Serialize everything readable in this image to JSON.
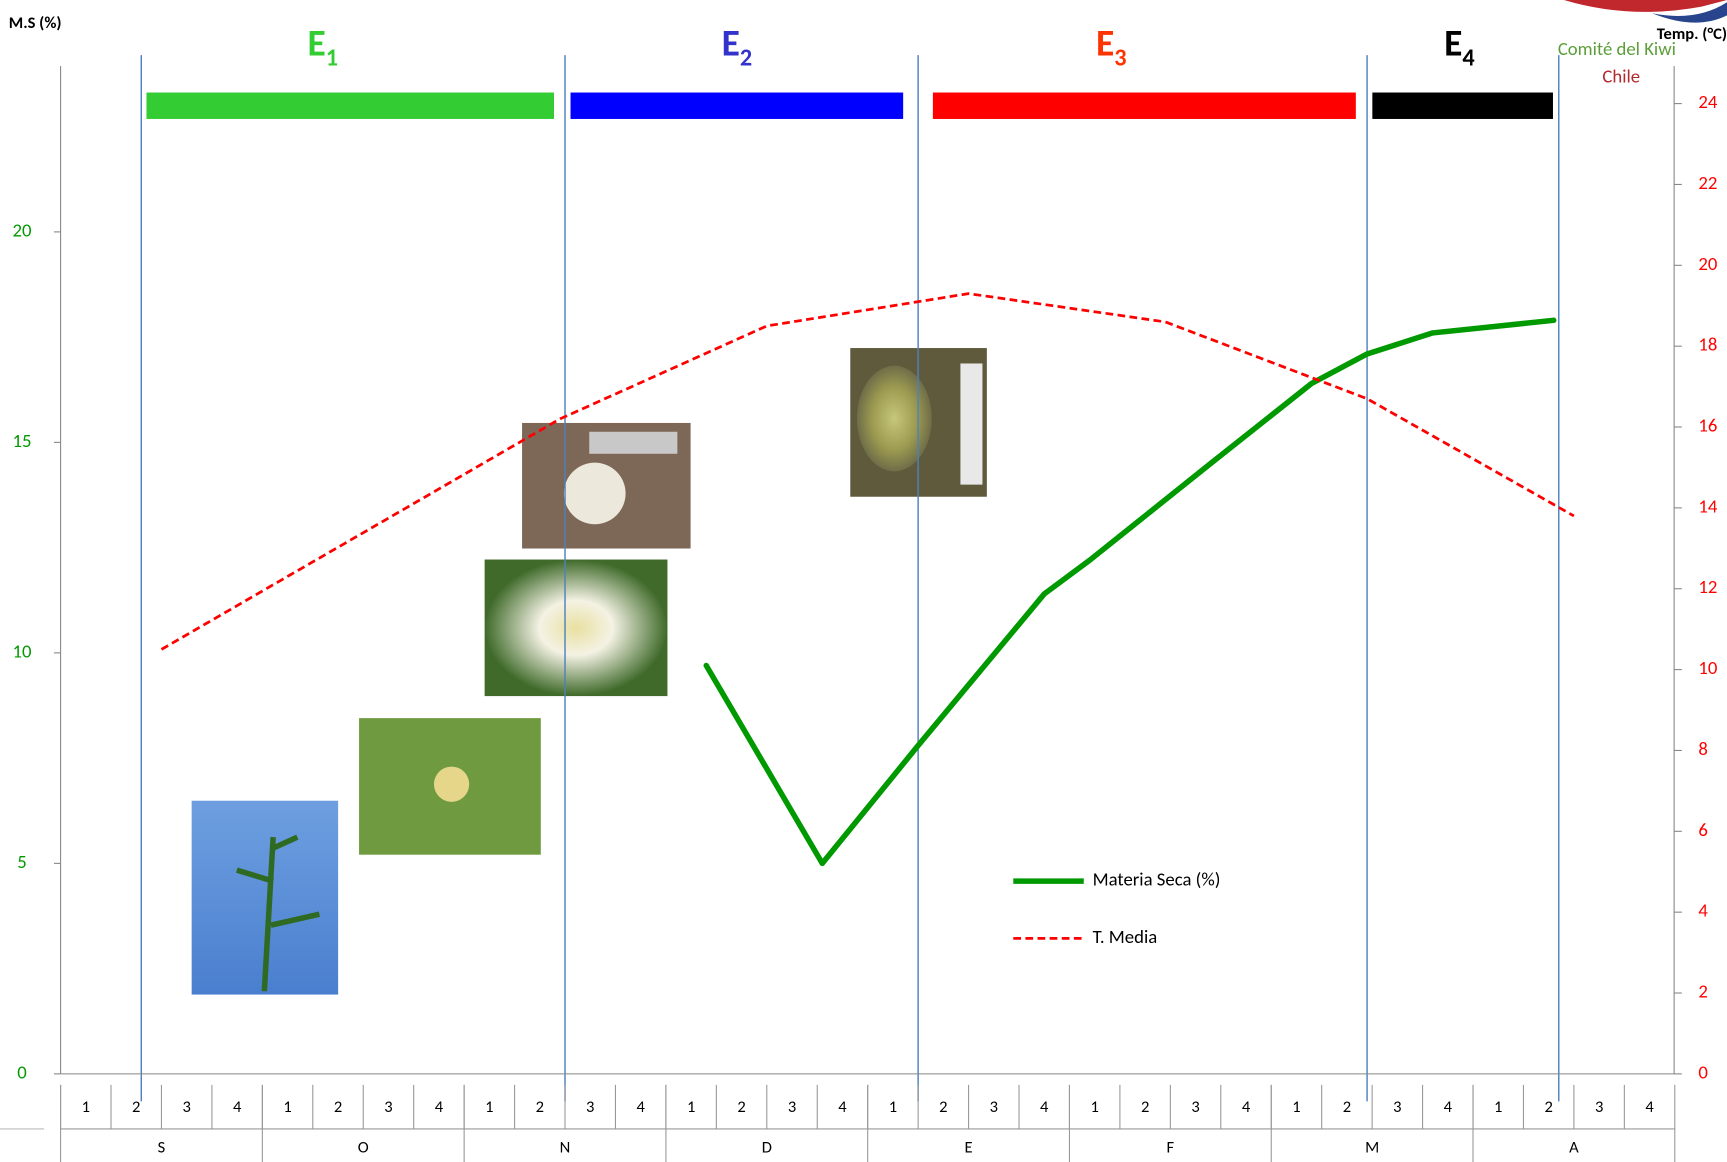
{
  "chart_data": {
    "type": "line",
    "y_axis_label": "M.S (%)",
    "y2_axis_label": "Temp. (°C)",
    "logo": [
      "Comité del Kiwi",
      "Chile"
    ],
    "stages": [
      {
        "label": "E",
        "sub": "1",
        "color": "#33cc33"
      },
      {
        "label": "E",
        "sub": "2",
        "color": "#0000ff"
      },
      {
        "label": "E",
        "sub": "3",
        "color": "#ff0000"
      },
      {
        "label": "E",
        "sub": "4",
        "color": "#000000"
      }
    ],
    "categories": [
      "1",
      "2",
      "3",
      "4",
      "1",
      "2",
      "3",
      "4",
      "1",
      "2",
      "3",
      "4",
      "1",
      "2",
      "3",
      "4",
      "1",
      "2",
      "3",
      "4",
      "1",
      "2",
      "3",
      "4",
      "1",
      "2",
      "3",
      "4",
      "1",
      "2",
      "3",
      "4"
    ],
    "months": [
      "S",
      "O",
      "N",
      "D",
      "E",
      "F",
      "M",
      "A"
    ],
    "xlim": [
      0.5,
      32.5
    ],
    "ylim": [
      0,
      24.2
    ],
    "yticks": [
      0,
      5,
      10,
      15,
      20
    ],
    "y2lim": [
      0,
      25.2
    ],
    "y2ticks": [
      0,
      2,
      4,
      6,
      8,
      10,
      12,
      14,
      16,
      18,
      20,
      22,
      24
    ],
    "series": [
      {
        "name": "Materia Seca (%)",
        "color": "#009900",
        "dash": false,
        "x": [
          13.3,
          15.6,
          17.5,
          20.0,
          20.9,
          23.3,
          25.3,
          26.4,
          27.7,
          30.1
        ],
        "values": [
          9.7,
          5.0,
          7.8,
          11.4,
          12.2,
          14.5,
          16.4,
          17.1,
          17.6,
          17.9
        ]
      },
      {
        "name": "T. Media",
        "color": "#ff0000",
        "dash": true,
        "axis": "y2",
        "x": [
          2.5,
          10.4,
          14.5,
          18.5,
          22.4,
          26.4,
          30.5
        ],
        "values": [
          10.5,
          16.2,
          18.5,
          19.3,
          18.6,
          16.7,
          13.8
        ]
      }
    ]
  }
}
